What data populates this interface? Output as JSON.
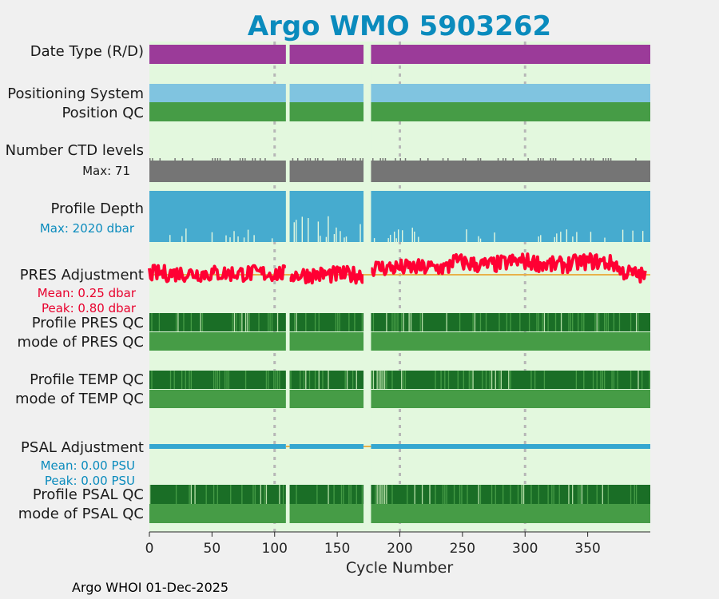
{
  "chart_data": {
    "type": "timeline",
    "title": "Argo WMO 5903262",
    "xlabel": "Cycle Number",
    "xlim": [
      0,
      400
    ],
    "xticks": [
      "0",
      "50",
      "100",
      "150",
      "200",
      "250",
      "300",
      "350"
    ],
    "gridlines_x": [
      100,
      200,
      300
    ],
    "gaps": [
      [
        109,
        112
      ],
      [
        171,
        177
      ]
    ],
    "colors": {
      "panel_bg": "#e3f8de",
      "date_type": "#9b3b99",
      "positioning": "#80c4e0",
      "qc_good": "#469c46",
      "qc_dark": "#1a6e26",
      "qc_light": "#b7e0a8",
      "ctd": "#757575",
      "depth": "#46abcf",
      "pres_adj": "#ff0033",
      "psal_adj": "#35a7d0",
      "zero_line": "#e8b24a",
      "grid": "#b7b7b7",
      "title": "#0a8bbd"
    },
    "rows": {
      "date_type": {
        "label": "Date Type (R/D)"
      },
      "positioning": {
        "label": "Positioning System"
      },
      "position_qc": {
        "label": "Position QC"
      },
      "ctd": {
        "label": "Number CTD levels",
        "stat": "Max: 71",
        "max": 71
      },
      "depth": {
        "label": "Profile Depth",
        "stat": "Max: 2020 dbar",
        "max": 2020
      },
      "pres_adj": {
        "label": "PRES Adjustment",
        "mean": "Mean: 0.25 dbar",
        "peak": "Peak: 0.80 dbar",
        "mean_value": 0.25,
        "peak_value": 0.8
      },
      "profile_pres_qc": {
        "label": "Profile PRES QC"
      },
      "mode_pres_qc": {
        "label": "mode of PRES QC"
      },
      "profile_temp_qc": {
        "label": "Profile TEMP QC"
      },
      "mode_temp_qc": {
        "label": "mode of TEMP QC"
      },
      "psal_adj": {
        "label": "PSAL Adjustment",
        "mean": "Mean: 0.00 PSU",
        "peak": "Peak: 0.00 PSU"
      },
      "profile_psal_qc": {
        "label": "Profile PSAL QC"
      },
      "mode_psal_qc": {
        "label": "mode of PSAL QC"
      }
    }
  },
  "footer": "Argo WHOI 01-Dec-2025"
}
